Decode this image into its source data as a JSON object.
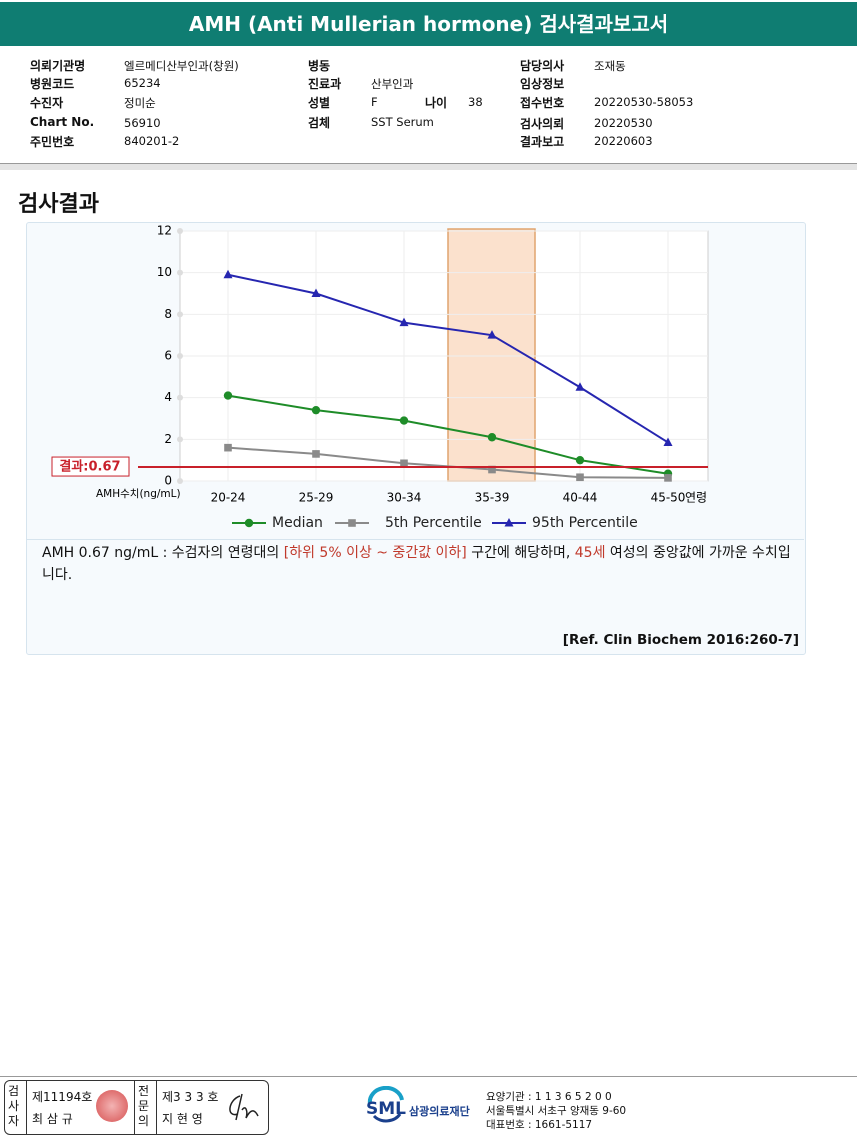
{
  "header": {
    "title": "AMH (Anti Mullerian hormone) 검사결과보고서"
  },
  "info": {
    "columns": [
      [
        {
          "label": "의뢰기관명",
          "value": "엘르메디산부인과(창원)"
        },
        {
          "label": "병원코드",
          "value": "65234"
        },
        {
          "label": "수진자",
          "value": "정미순"
        },
        {
          "label": "Chart No.",
          "value": "56910"
        },
        {
          "label": "주민번호",
          "value": "840201-2"
        }
      ],
      [
        {
          "label": "병동"
        },
        {
          "label": "진료과",
          "value": "산부인과"
        },
        {
          "label": "성별",
          "value": "F"
        },
        {
          "label": "검체",
          "value": "SST Serum"
        }
      ],
      [
        {
          "label": "담당의사",
          "value": "조재동"
        },
        {
          "label": "임상정보"
        },
        {
          "label": "접수번호",
          "value": "20220530-58053"
        },
        {
          "label": "검사의뢰",
          "value": "20220530"
        },
        {
          "label": "결과보고",
          "value": "20220603"
        }
      ]
    ],
    "age": {
      "label": "나이",
      "value": "38"
    }
  },
  "section_title": "검사결과",
  "chart_data": {
    "type": "line",
    "categories": [
      "20-24",
      "25-29",
      "30-34",
      "35-39",
      "40-44",
      "45-50"
    ],
    "x_label": "연령",
    "y_label": "AMH수치(ng/mL)",
    "ylim": [
      0,
      12
    ],
    "yticks": [
      0,
      2,
      4,
      6,
      8,
      10,
      12
    ],
    "grid": true,
    "highlight_category": "35-39",
    "result": {
      "value": 0.67,
      "label": "결과:0.67"
    },
    "series": [
      {
        "name": "Median",
        "color": "#1e8c28",
        "marker": "circle",
        "values": [
          4.1,
          3.4,
          2.9,
          2.1,
          1.0,
          0.35
        ]
      },
      {
        "name": "5th Percentile",
        "color": "#8a8a8a",
        "marker": "square",
        "values": [
          1.6,
          1.3,
          0.85,
          0.55,
          0.18,
          0.15
        ]
      },
      {
        "name": "95th Percentile",
        "color": "#2626b0",
        "marker": "triangle",
        "values": [
          9.9,
          9.0,
          7.6,
          7.0,
          4.5,
          1.85
        ]
      }
    ]
  },
  "comment": {
    "segments": [
      {
        "text": "AMH  0.67 ng/mL : 수검자의 연령대의 "
      },
      {
        "text": "[하위 5% 이상 ~ 중간값 이하]",
        "color": "#c0392b"
      },
      {
        "text": "  구간에 해당하며, "
      },
      {
        "text": "45세",
        "color": "#c0392b"
      },
      {
        "text": " 여성의 중앙값에 가까운 수치입니다."
      }
    ],
    "reference": "[Ref. Clin Biochem 2016:260-7]"
  },
  "footer": {
    "examiner": {
      "role": "검사자",
      "number": "제11194호",
      "name": "최 삼 규"
    },
    "specialist": {
      "role": "전문의",
      "number": "제3 3 3 호",
      "name": "지 현 영"
    },
    "logo": {
      "mark": "SML",
      "name": "삼광의료재단"
    },
    "address": [
      "요양기관 : 1 1 3 6 5 2 0 0",
      "서울특별시 서초구 양재동 9-60",
      "대표번호 : 1661-5117"
    ]
  }
}
